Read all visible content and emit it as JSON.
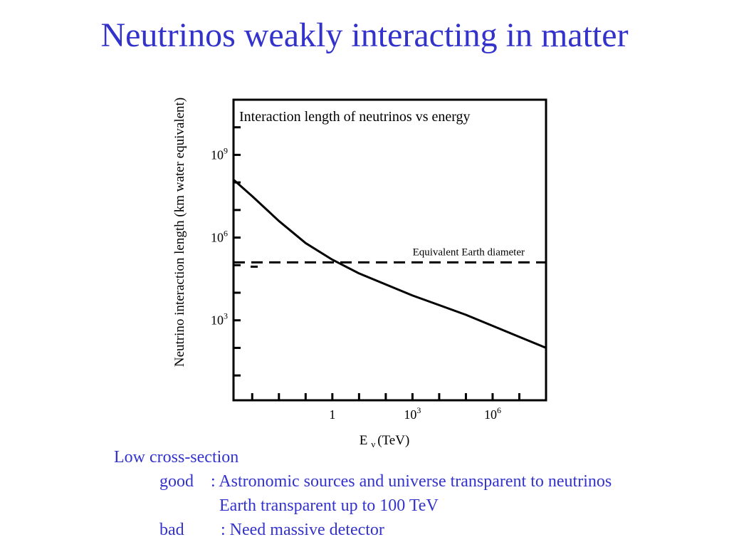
{
  "slide": {
    "title": "Neutrinos weakly interacting in matter",
    "bullets": {
      "heading": "Low cross-section",
      "good_label": "good",
      "good_text": ": Astronomic sources and universe transparent to neutrinos",
      "good_text2": "Earth transparent up to 100 TeV",
      "bad_label": "bad",
      "bad_text": ": Need massive detector"
    }
  },
  "colors": {
    "accent": "#3333cc",
    "ink": "#000000"
  },
  "chart_data": {
    "type": "line",
    "title": "Interaction length of neutrinos vs energy",
    "ylabel": "Neutrino interaction length (km water equivalent)",
    "xlabel_main": "E",
    "xlabel_sub": "ν",
    "xlabel_unit": "(TeV)",
    "xscale": "log",
    "yscale": "log",
    "xlim_log10": [
      -3.7,
      8.0
    ],
    "ylim_log10": [
      0.1,
      11.0
    ],
    "x_ticks": [
      {
        "base": "1",
        "exp": "",
        "log10": 0
      },
      {
        "base": "10",
        "exp": "3",
        "log10": 3
      },
      {
        "base": "10",
        "exp": "6",
        "log10": 6
      }
    ],
    "y_ticks": [
      {
        "base": "10",
        "exp": "3",
        "log10": 3
      },
      {
        "base": "10",
        "exp": "6",
        "log10": 6
      },
      {
        "base": "10",
        "exp": "9",
        "log10": 9
      }
    ],
    "series": [
      {
        "style": "solid",
        "log10_x": [
          -3.7,
          -3.0,
          -2.0,
          -1.0,
          0.0,
          1.0,
          2.0,
          3.0,
          4.0,
          5.0,
          6.0,
          7.0,
          8.0
        ],
        "log10_y": [
          8.1,
          7.5,
          6.6,
          5.8,
          5.2,
          4.7,
          4.3,
          3.9,
          3.55,
          3.2,
          2.8,
          2.4,
          2.0
        ]
      }
    ],
    "reference_line": {
      "label": "Equivalent Earth diameter",
      "log10_y": 5.1,
      "style": "dashed"
    }
  }
}
